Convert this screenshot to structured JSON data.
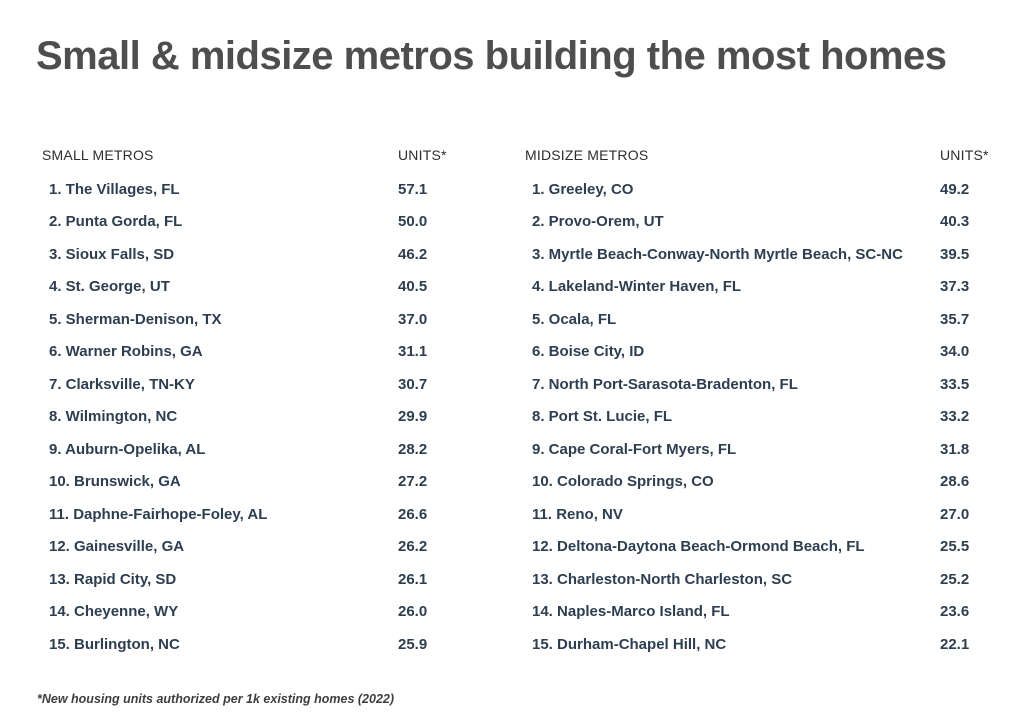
{
  "title": "Small & midsize metros building the most homes",
  "footnote": "*New housing units authorized per 1k existing homes (2022)",
  "colors": {
    "background": "#ffffff",
    "title_text": "#4e4e4e",
    "header_text": "#2d2d2d",
    "row_text": "#2d3e50",
    "footnote_text": "#3e3e3e"
  },
  "chart_data": {
    "type": "table",
    "title": "Small & midsize metros building the most homes",
    "footnote": "*New housing units authorized per 1k existing homes (2022)",
    "units_definition": "New housing units authorized per 1k existing homes (2022)",
    "tables": [
      {
        "id": "small-metros",
        "name_header": "SMALL METROS",
        "units_header": "UNITS*",
        "rows": [
          {
            "rank": "1.",
            "metro": "The Villages, FL",
            "units": "57.1"
          },
          {
            "rank": "2.",
            "metro": "Punta Gorda, FL",
            "units": "50.0"
          },
          {
            "rank": "3.",
            "metro": "Sioux Falls, SD",
            "units": "46.2"
          },
          {
            "rank": "4.",
            "metro": "St. George, UT",
            "units": "40.5"
          },
          {
            "rank": "5.",
            "metro": "Sherman-Denison, TX",
            "units": "37.0"
          },
          {
            "rank": "6.",
            "metro": "Warner Robins, GA",
            "units": "31.1"
          },
          {
            "rank": "7.",
            "metro": "Clarksville, TN-KY",
            "units": "30.7"
          },
          {
            "rank": "8.",
            "metro": "Wilmington, NC",
            "units": "29.9"
          },
          {
            "rank": "9.",
            "metro": "Auburn-Opelika, AL",
            "units": "28.2"
          },
          {
            "rank": "10.",
            "metro": "Brunswick, GA",
            "units": "27.2"
          },
          {
            "rank": "11.",
            "metro": "Daphne-Fairhope-Foley, AL",
            "units": "26.6"
          },
          {
            "rank": "12.",
            "metro": "Gainesville, GA",
            "units": "26.2"
          },
          {
            "rank": "13.",
            "metro": "Rapid City, SD",
            "units": "26.1"
          },
          {
            "rank": "14.",
            "metro": "Cheyenne, WY",
            "units": "26.0"
          },
          {
            "rank": "15.",
            "metro": "Burlington, NC",
            "units": "25.9"
          }
        ]
      },
      {
        "id": "midsize-metros",
        "name_header": "MIDSIZE METROS",
        "units_header": "UNITS*",
        "rows": [
          {
            "rank": "1.",
            "metro": "Greeley, CO",
            "units": "49.2"
          },
          {
            "rank": "2.",
            "metro": "Provo-Orem, UT",
            "units": "40.3"
          },
          {
            "rank": "3.",
            "metro": "Myrtle Beach-Conway-North Myrtle Beach, SC-NC",
            "units": "39.5"
          },
          {
            "rank": "4.",
            "metro": "Lakeland-Winter Haven, FL",
            "units": "37.3"
          },
          {
            "rank": "5.",
            "metro": "Ocala, FL",
            "units": "35.7"
          },
          {
            "rank": "6.",
            "metro": "Boise City, ID",
            "units": "34.0"
          },
          {
            "rank": "7.",
            "metro": "North Port-Sarasota-Bradenton, FL",
            "units": "33.5"
          },
          {
            "rank": "8.",
            "metro": "Port St. Lucie, FL",
            "units": "33.2"
          },
          {
            "rank": "9.",
            "metro": "Cape Coral-Fort Myers, FL",
            "units": "31.8"
          },
          {
            "rank": "10.",
            "metro": "Colorado Springs, CO",
            "units": "28.6"
          },
          {
            "rank": "11.",
            "metro": "Reno, NV",
            "units": "27.0"
          },
          {
            "rank": "12.",
            "metro": "Deltona-Daytona Beach-Ormond Beach, FL",
            "units": "25.5"
          },
          {
            "rank": "13.",
            "metro": "Charleston-North Charleston, SC",
            "units": "25.2"
          },
          {
            "rank": "14.",
            "metro": "Naples-Marco Island, FL",
            "units": "23.6"
          },
          {
            "rank": "15.",
            "metro": "Durham-Chapel Hill, NC",
            "units": "22.1"
          }
        ]
      }
    ]
  }
}
